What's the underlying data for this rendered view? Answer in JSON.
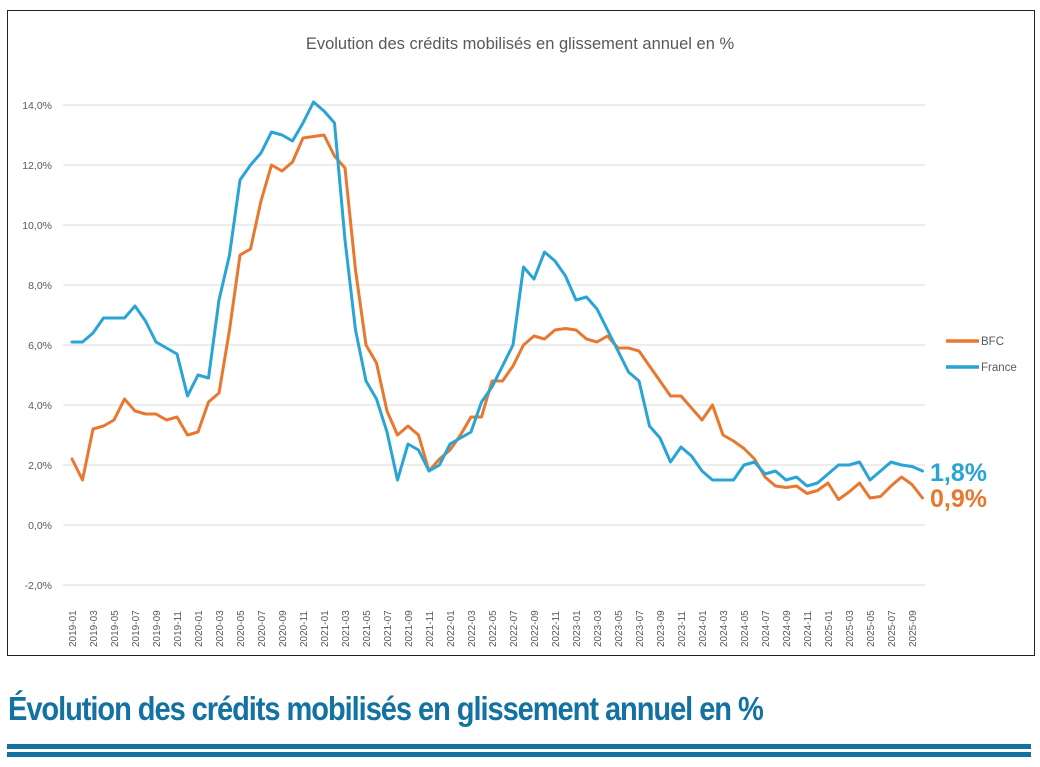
{
  "chart_data": {
    "type": "line",
    "title": "Evolution des crédits mobilisés en glissement annuel en %",
    "xlabel": "",
    "ylabel": "",
    "ylim": [
      -2,
      14
    ],
    "yticks": [
      -2,
      0,
      2,
      4,
      6,
      8,
      10,
      12,
      14
    ],
    "ytick_labels": [
      "-2,0%",
      "0,0%",
      "2,0%",
      "4,0%",
      "6,0%",
      "8,0%",
      "10,0%",
      "12,0%",
      "14,0%"
    ],
    "grid": true,
    "legend_position": "right",
    "x": [
      "2019-01",
      "2019-02",
      "2019-03",
      "2019-04",
      "2019-05",
      "2019-06",
      "2019-07",
      "2019-08",
      "2019-09",
      "2019-10",
      "2019-11",
      "2019-12",
      "2020-01",
      "2020-02",
      "2020-03",
      "2020-04",
      "2020-05",
      "2020-06",
      "2020-07",
      "2020-08",
      "2020-09",
      "2020-10",
      "2020-11",
      "2020-12",
      "2021-01",
      "2021-02",
      "2021-03",
      "2021-04",
      "2021-05",
      "2021-06",
      "2021-07",
      "2021-08",
      "2021-09",
      "2021-10",
      "2021-11",
      "2021-12",
      "2022-01",
      "2022-02",
      "2022-03",
      "2022-04",
      "2022-05",
      "2022-06",
      "2022-07",
      "2022-08",
      "2022-09",
      "2022-10",
      "2022-11",
      "2022-12",
      "2023-01",
      "2023-02",
      "2023-03",
      "2023-04",
      "2023-05",
      "2023-06",
      "2023-07",
      "2023-08",
      "2023-09",
      "2023-10",
      "2023-11",
      "2023-12",
      "2024-01",
      "2024-02",
      "2024-03",
      "2024-04",
      "2024-05",
      "2024-06",
      "2024-07",
      "2024-08",
      "2024-09",
      "2024-10",
      "2024-11",
      "2024-12",
      "2025-01",
      "2025-02",
      "2025-03",
      "2025-04",
      "2025-05",
      "2025-06",
      "2025-07",
      "2025-08",
      "2025-09",
      "2025-10"
    ],
    "xtick_labels": [
      "2019-01",
      "2019-03",
      "2019-05",
      "2019-07",
      "2019-09",
      "2019-11",
      "2020-01",
      "2020-03",
      "2020-05",
      "2020-07",
      "2020-09",
      "2020-11",
      "2021-01",
      "2021-03",
      "2021-05",
      "2021-07",
      "2021-09",
      "2021-11",
      "2022-01",
      "2022-03",
      "2022-05",
      "2022-07",
      "2022-09",
      "2022-11",
      "2023-01",
      "2023-03",
      "2023-05",
      "2023-07",
      "2023-09",
      "2023-11",
      "2024-01",
      "2024-03",
      "2024-05",
      "2024-07",
      "2024-09",
      "2024-11",
      "2025-01",
      "2025-03",
      "2025-05",
      "2025-07",
      "2025-09"
    ],
    "series": [
      {
        "name": "BFC",
        "color": "#e8782f",
        "values": [
          2.2,
          1.5,
          3.2,
          3.3,
          3.5,
          4.2,
          3.8,
          3.7,
          3.7,
          3.5,
          3.6,
          3.0,
          3.1,
          4.1,
          4.4,
          6.5,
          9.0,
          9.2,
          10.8,
          12.0,
          11.8,
          12.1,
          12.9,
          12.95,
          13.0,
          12.3,
          11.9,
          8.5,
          6.0,
          5.4,
          3.8,
          3.0,
          3.3,
          3.0,
          1.8,
          2.2,
          2.5,
          3.0,
          3.6,
          3.6,
          4.8,
          4.8,
          5.3,
          6.0,
          6.3,
          6.2,
          6.5,
          6.55,
          6.5,
          6.2,
          6.1,
          6.3,
          5.9,
          5.9,
          5.8,
          5.3,
          4.8,
          4.3,
          4.3,
          3.9,
          3.5,
          4.0,
          3.0,
          2.8,
          2.55,
          2.2,
          1.6,
          1.3,
          1.25,
          1.3,
          1.05,
          1.15,
          1.4,
          0.85,
          1.1,
          1.4,
          0.9,
          0.95,
          1.3,
          1.6,
          1.35,
          0.9
        ]
      },
      {
        "name": "France",
        "color": "#2aa4d5",
        "values": [
          6.1,
          6.1,
          6.4,
          6.9,
          6.9,
          6.9,
          7.3,
          6.8,
          6.1,
          5.9,
          5.7,
          4.3,
          5.0,
          4.9,
          7.5,
          9.0,
          11.5,
          12.0,
          12.4,
          13.1,
          13.0,
          12.8,
          13.4,
          14.1,
          13.8,
          13.4,
          9.5,
          6.5,
          4.8,
          4.2,
          3.1,
          1.5,
          2.7,
          2.5,
          1.8,
          2.0,
          2.7,
          2.9,
          3.1,
          4.1,
          4.6,
          5.3,
          6.0,
          8.6,
          8.2,
          9.1,
          8.8,
          8.3,
          7.5,
          7.6,
          7.2,
          6.5,
          5.8,
          5.1,
          4.8,
          3.3,
          2.9,
          2.1,
          2.6,
          2.3,
          1.8,
          1.5,
          1.5,
          1.5,
          2.0,
          2.1,
          1.7,
          1.8,
          1.5,
          1.6,
          1.3,
          1.4,
          1.7,
          2.0,
          2.0,
          2.1,
          1.5,
          1.8,
          2.1,
          2.0,
          1.95,
          1.8
        ]
      }
    ],
    "annotations": [
      {
        "text": "1,8%",
        "series": "France",
        "color": "#2aa4d5"
      },
      {
        "text": "0,9%",
        "series": "BFC",
        "color": "#e8782f"
      }
    ]
  },
  "caption": "Évolution des crédits mobilisés en glissement annuel en %",
  "colors": {
    "accent": "#1372a1",
    "grid": "#e2e2e2",
    "axis_text": "#595959"
  }
}
